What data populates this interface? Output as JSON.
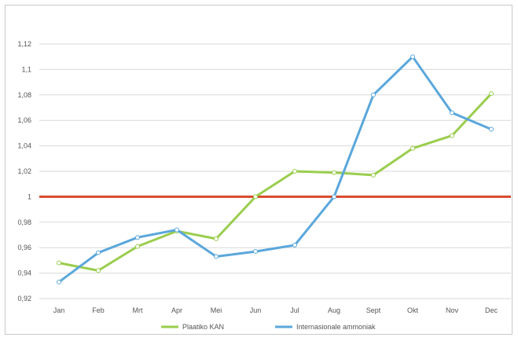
{
  "chart_data": {
    "type": "line",
    "categories": [
      "Jan",
      "Feb",
      "Mrt",
      "Apr",
      "Mei",
      "Jun",
      "Jul",
      "Aug",
      "Sept",
      "Okt",
      "Nov",
      "Dec"
    ],
    "series": [
      {
        "name": "Plaatiko KAN",
        "color": "#9acd4e",
        "values": [
          0.948,
          0.942,
          0.961,
          0.973,
          0.967,
          1.0,
          1.02,
          1.019,
          1.017,
          1.038,
          1.048,
          1.081
        ]
      },
      {
        "name": "Internasionale ammoniak",
        "color": "#5aa7db",
        "values": [
          0.933,
          0.956,
          0.968,
          0.974,
          0.953,
          0.957,
          0.962,
          1.0,
          1.08,
          1.11,
          1.066,
          1.053
        ]
      }
    ],
    "reference_line": {
      "value": 1.0,
      "color": "#d9472b"
    },
    "ylim": [
      0.92,
      1.12
    ],
    "y_ticks": [
      "0,92",
      "0,94",
      "0,96",
      "0,98",
      "1",
      "1,02",
      "1,04",
      "1,06",
      "1,08",
      "1,1",
      "1,12"
    ],
    "grid": true,
    "legend_position": "bottom",
    "title": "",
    "xlabel": "",
    "ylabel": ""
  }
}
